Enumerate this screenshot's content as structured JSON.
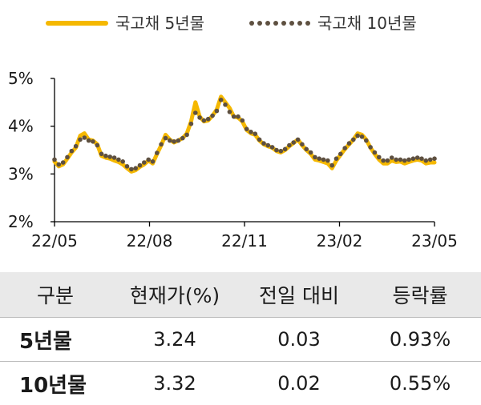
{
  "chart_data": {
    "type": "line",
    "title": "",
    "xlabel": "",
    "ylabel": "",
    "ylim": [
      2,
      5
    ],
    "yticks": [
      "2%",
      "3%",
      "4%",
      "5%"
    ],
    "xticks": [
      "22/05",
      "22/08",
      "22/11",
      "23/02",
      "23/05"
    ],
    "grid": false,
    "legend_position": "top",
    "series": [
      {
        "name": "국고채 5년물",
        "style": "solid",
        "color": "#F5B800",
        "values": [
          3.26,
          3.16,
          3.2,
          3.32,
          3.45,
          3.55,
          3.8,
          3.85,
          3.72,
          3.7,
          3.62,
          3.38,
          3.34,
          3.32,
          3.28,
          3.25,
          3.2,
          3.12,
          3.05,
          3.08,
          3.15,
          3.2,
          3.28,
          3.22,
          3.42,
          3.6,
          3.82,
          3.72,
          3.66,
          3.7,
          3.75,
          3.85,
          4.1,
          4.5,
          4.2,
          4.1,
          4.12,
          4.22,
          4.35,
          4.62,
          4.5,
          4.38,
          4.2,
          4.18,
          4.1,
          3.92,
          3.85,
          3.82,
          3.7,
          3.62,
          3.58,
          3.55,
          3.48,
          3.45,
          3.5,
          3.58,
          3.65,
          3.72,
          3.6,
          3.5,
          3.42,
          3.3,
          3.28,
          3.25,
          3.22,
          3.12,
          3.28,
          3.4,
          3.52,
          3.62,
          3.72,
          3.85,
          3.82,
          3.72,
          3.55,
          3.42,
          3.3,
          3.22,
          3.22,
          3.28,
          3.25,
          3.26,
          3.22,
          3.25,
          3.28,
          3.3,
          3.28,
          3.22,
          3.24,
          3.24
        ]
      },
      {
        "name": "국고채 10년물",
        "style": "dotted",
        "color": "#5E5040",
        "values": [
          3.3,
          3.2,
          3.24,
          3.35,
          3.48,
          3.58,
          3.72,
          3.76,
          3.7,
          3.68,
          3.6,
          3.42,
          3.38,
          3.36,
          3.34,
          3.3,
          3.26,
          3.16,
          3.1,
          3.12,
          3.18,
          3.24,
          3.3,
          3.26,
          3.44,
          3.62,
          3.75,
          3.7,
          3.68,
          3.7,
          3.75,
          3.82,
          4.05,
          4.28,
          4.18,
          4.12,
          4.15,
          4.22,
          4.32,
          4.55,
          4.45,
          4.3,
          4.2,
          4.2,
          4.12,
          3.94,
          3.88,
          3.84,
          3.72,
          3.64,
          3.6,
          3.56,
          3.5,
          3.48,
          3.52,
          3.6,
          3.66,
          3.72,
          3.62,
          3.52,
          3.45,
          3.35,
          3.32,
          3.3,
          3.28,
          3.18,
          3.32,
          3.42,
          3.54,
          3.64,
          3.72,
          3.8,
          3.78,
          3.7,
          3.56,
          3.45,
          3.35,
          3.28,
          3.28,
          3.34,
          3.3,
          3.3,
          3.28,
          3.3,
          3.32,
          3.34,
          3.32,
          3.28,
          3.3,
          3.32
        ]
      }
    ]
  },
  "table": {
    "headers": [
      "구분",
      "현재가(%)",
      "전일 대비",
      "등락률"
    ],
    "rows": [
      {
        "label": "5년물",
        "current": "3.24",
        "change": "0.03",
        "rate": "0.93%"
      },
      {
        "label": "10년물",
        "current": "3.32",
        "change": "0.02",
        "rate": "0.55%"
      }
    ]
  }
}
